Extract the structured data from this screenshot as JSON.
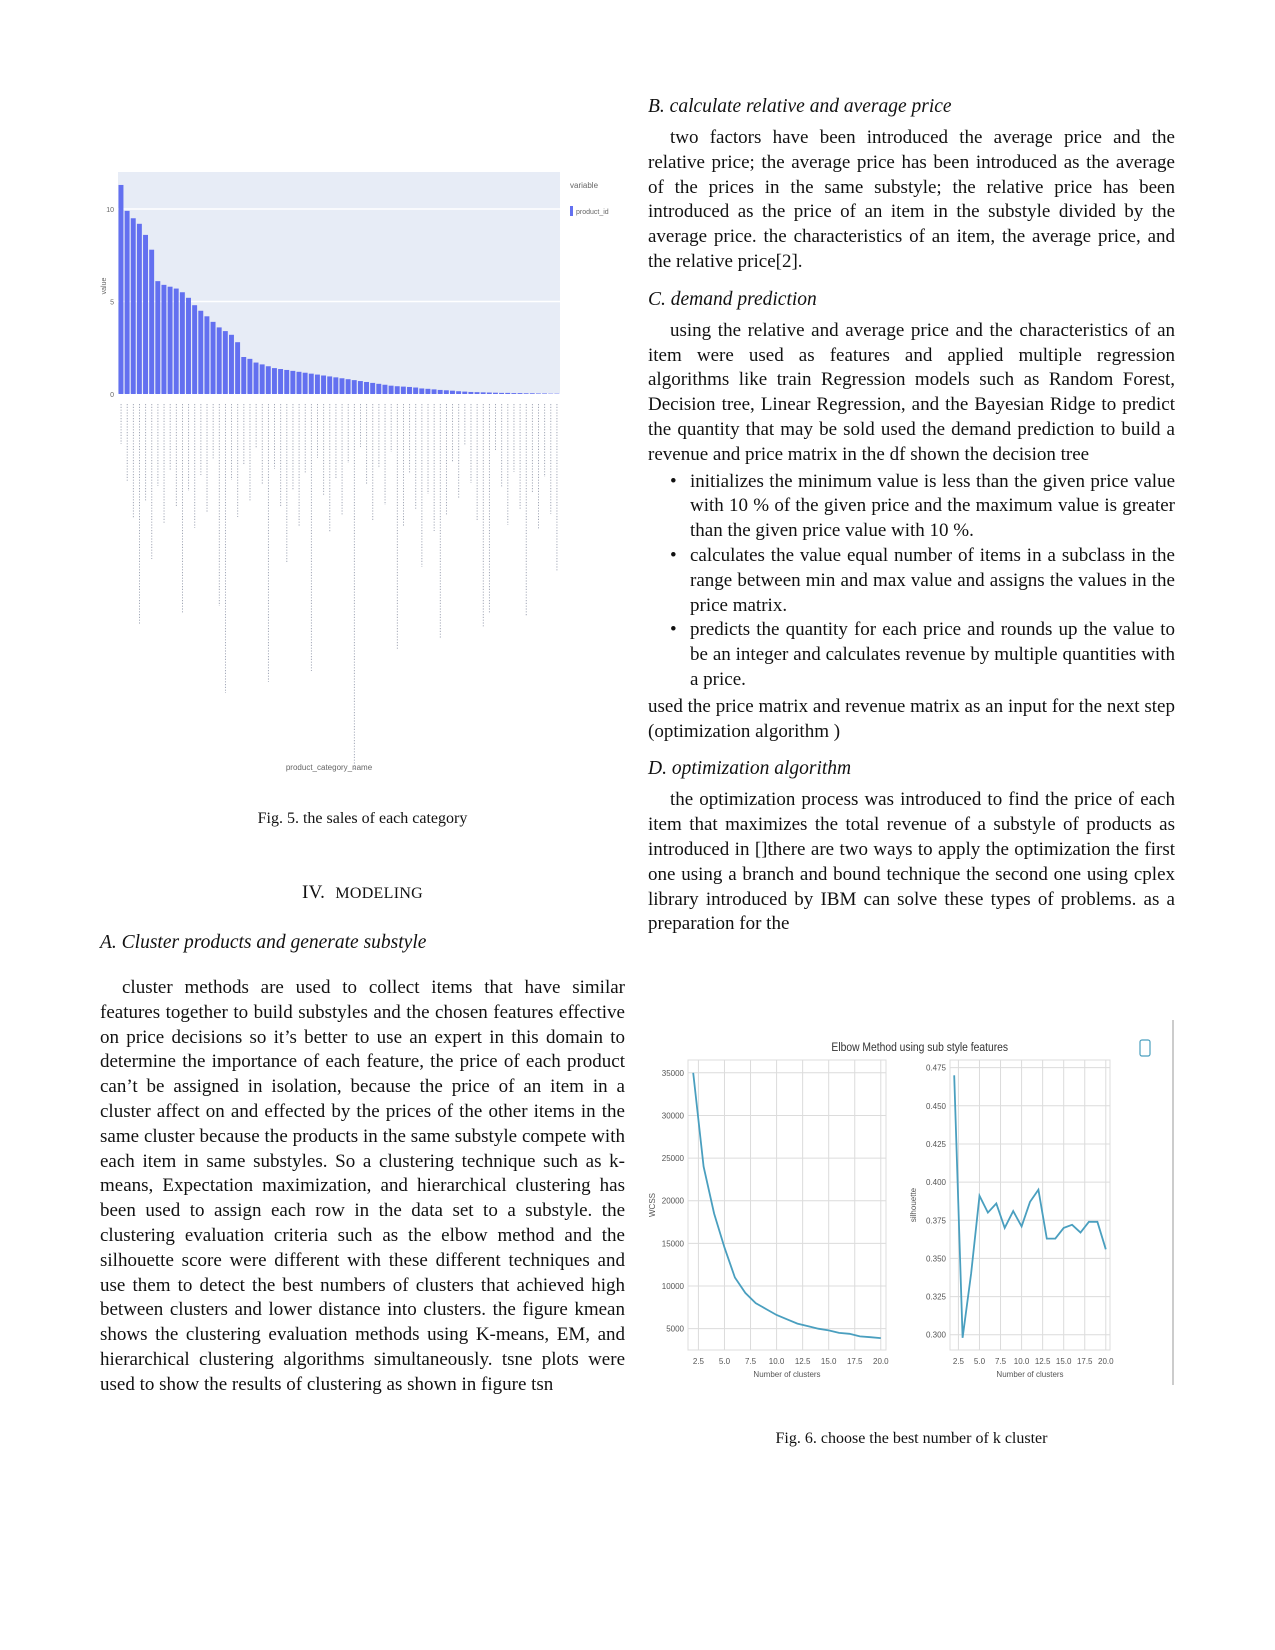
{
  "left": {
    "fig5_caption": "Fig. 5.   the sales of each category",
    "section_title_num": "IV.",
    "section_title": "MODELING",
    "subsec_a": "A.  Cluster products and generate substyle",
    "para_a": "cluster methods are used to collect items that have similar features together to build substyles and the chosen features effective on price decisions so it’s better to use an expert in this domain to determine the importance of each feature, the price of each product can’t be assigned in isolation, because the price of an item in a cluster affect on and effected by the prices of the other items in the same cluster because the products in the same substyle compete with each item in same substyles. So a clustering technique such as k-means, Expectation maximization, and hierarchical clustering has been used to assign each row in the data set to a substyle. the clustering evaluation criteria such as the elbow method and the silhouette score were different with these different techniques and use them to detect the best numbers of clusters that achieved high between clusters and lower distance into clusters. the figure kmean shows the clustering evaluation methods using K-means, EM, and hierarchical clustering algorithms simultaneously. tsne plots were used to show the results of clustering as shown in figure tsn"
  },
  "right": {
    "subsec_b": "B.  calculate relative and average price",
    "para_b": "two factors have been introduced the average price and the relative price; the average price has been introduced as the average of the prices in the same substyle; the relative price has been introduced as the price of an item in the substyle divided by the average price. the characteristics of an item, the average price, and the relative price[2].",
    "subsec_c": "C.  demand prediction",
    "para_c": "using the relative and average price and the characteristics of an item were used as features and applied multiple regression algorithms like train Regression models such as Random Forest, Decision tree, Linear Regression, and the Bayesian Ridge to predict the quantity that may be sold used the demand prediction to build a revenue and price matrix in the df shown the decision tree",
    "bullets": [
      "initializes the minimum value is less than the given price value with 10 % of the given price and the maximum value is greater than the given price value with 10 %.",
      "calculates the value equal number of items in a subclass in the range between min and max value and assigns the values in the price matrix.",
      "predicts the quantity for each price and rounds up the value to be an integer and calculates revenue by multiple quantities with a price."
    ],
    "para_c2": "used the price matrix and revenue matrix as an input for the next step (optimization algorithm )",
    "subsec_d": "D.  optimization algorithm",
    "para_d": "the optimization process was introduced to find the price of each item that maximizes the total revenue of a substyle of products as introduced in []there are two ways to apply the optimization the first one using a branch and bound technique the second one using cplex library introduced by IBM can solve these types of problems. as a preparation for the",
    "fig6_caption": "Fig. 6.   choose the best number of k cluster"
  },
  "chart_data": [
    {
      "type": "bar",
      "title": "",
      "xlabel": "product_category_name",
      "ylabel": "value",
      "legend_title": "variable",
      "series": [
        {
          "name": "product_id",
          "color": "#6370f0",
          "values": [
            11.3,
            9.9,
            9.5,
            9.2,
            8.6,
            7.8,
            6.1,
            5.9,
            5.8,
            5.7,
            5.5,
            5.2,
            4.8,
            4.5,
            4.2,
            3.9,
            3.6,
            3.4,
            3.2,
            2.8,
            2.0,
            1.9,
            1.7,
            1.6,
            1.5,
            1.4,
            1.35,
            1.3,
            1.25,
            1.2,
            1.15,
            1.1,
            1.05,
            1.0,
            0.95,
            0.9,
            0.85,
            0.8,
            0.75,
            0.7,
            0.65,
            0.6,
            0.55,
            0.5,
            0.45,
            0.42,
            0.4,
            0.38,
            0.35,
            0.3,
            0.28,
            0.25,
            0.22,
            0.2,
            0.18,
            0.15,
            0.13,
            0.11,
            0.1,
            0.09,
            0.08,
            0.07,
            0.06,
            0.06,
            0.05,
            0.05,
            0.04,
            0.04,
            0.03,
            0.03,
            0.02,
            0.02
          ]
        }
      ],
      "y_ticks": [
        "10",
        "5",
        "0"
      ],
      "ylim": [
        0,
        12
      ]
    },
    {
      "type": "line",
      "title": "Elbow Method using sub style features",
      "panels": [
        {
          "xlabel": "Number of clusters",
          "ylabel": "WCSS",
          "x": [
            2,
            3,
            4,
            5,
            6,
            7,
            8,
            9,
            10,
            11,
            12,
            13,
            14,
            15,
            16,
            17,
            18,
            19,
            20
          ],
          "y": [
            35000,
            24000,
            18500,
            14500,
            11000,
            9200,
            8000,
            7300,
            6600,
            6100,
            5600,
            5300,
            5000,
            4800,
            4500,
            4400,
            4100,
            4000,
            3900
          ],
          "x_ticks": [
            "2.5",
            "5.0",
            "7.5",
            "10.0",
            "12.5",
            "15.0",
            "17.5",
            "20.0"
          ],
          "y_ticks": [
            "35000",
            "30000",
            "25000",
            "20000",
            "15000",
            "10000",
            "5000"
          ],
          "xlim": [
            1.5,
            20.5
          ],
          "ylim": [
            2500,
            36500
          ]
        },
        {
          "xlabel": "Number of clusters",
          "ylabel": "silhouette",
          "x": [
            2,
            3,
            4,
            5,
            6,
            7,
            8,
            9,
            10,
            11,
            12,
            13,
            14,
            15,
            16,
            17,
            18,
            19,
            20
          ],
          "y": [
            0.47,
            0.298,
            0.34,
            0.391,
            0.38,
            0.386,
            0.37,
            0.381,
            0.371,
            0.387,
            0.395,
            0.363,
            0.363,
            0.37,
            0.372,
            0.367,
            0.374,
            0.374,
            0.356
          ],
          "x_ticks": [
            "2.5",
            "5.0",
            "7.5",
            "10.0",
            "12.5",
            "15.0",
            "17.5",
            "20.0"
          ],
          "y_ticks": [
            "0.475",
            "0.450",
            "0.425",
            "0.400",
            "0.375",
            "0.350",
            "0.325",
            "0.300"
          ],
          "xlim": [
            1.5,
            20.5
          ],
          "ylim": [
            0.29,
            0.48
          ]
        }
      ],
      "color": "#4a9fbf"
    }
  ]
}
